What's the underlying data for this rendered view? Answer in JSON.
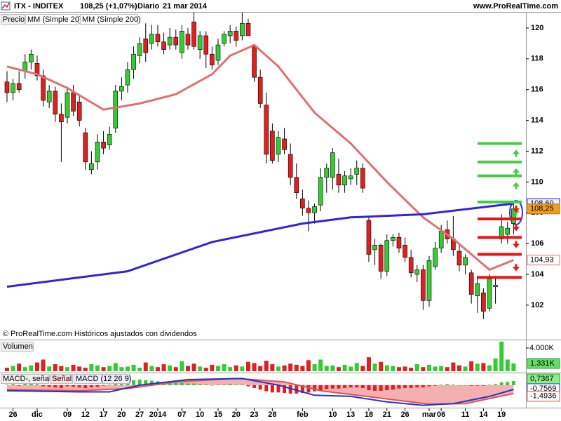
{
  "chart_data": [
    {
      "type": "candlestick",
      "title": "ITX - INDITEX",
      "quote": "108,25 (+1,07%)",
      "period": "Diario",
      "date": "21 mar 2014",
      "source": "www.ProRealTime.com",
      "footnote": "© ProRealTime.com Históricos ajustados con dividendos",
      "price_legend": "Precio",
      "last_price_label": "108,25",
      "last_price_color": "#f0a020",
      "up_color": "#33cc33",
      "down_color": "#e02020",
      "xlim": [
        -1.16,
        86.05
      ],
      "ylim": [
        100.4,
        121.0
      ],
      "yticks": [
        102,
        104,
        106,
        108,
        110,
        112,
        114,
        116,
        118,
        120
      ],
      "xticks": [
        {
          "value": 1,
          "label": "26"
        },
        {
          "value": 5,
          "label": "dic"
        },
        {
          "value": 10,
          "label": "09"
        },
        {
          "value": 13,
          "label": "12"
        },
        {
          "value": 16,
          "label": "17"
        },
        {
          "value": 19,
          "label": "20"
        },
        {
          "value": 22,
          "label": "27"
        },
        {
          "value": 25,
          "label": "2014"
        },
        {
          "value": 29,
          "label": "07"
        },
        {
          "value": 32,
          "label": "10"
        },
        {
          "value": 35,
          "label": "15"
        },
        {
          "value": 38,
          "label": "20"
        },
        {
          "value": 41,
          "label": "23"
        },
        {
          "value": 44,
          "label": "28"
        },
        {
          "value": 49,
          "label": "feb"
        },
        {
          "value": 54,
          "label": "10"
        },
        {
          "value": 57,
          "label": "13"
        },
        {
          "value": 60,
          "label": "18"
        },
        {
          "value": 63,
          "label": "21"
        },
        {
          "value": 66,
          "label": "26"
        },
        {
          "value": 70,
          "label": "mar"
        },
        {
          "value": 72,
          "label": "06"
        },
        {
          "value": 76,
          "label": "11"
        },
        {
          "value": 79,
          "label": "14"
        },
        {
          "value": 82,
          "label": "19"
        }
      ],
      "candles": {
        "open": [
          116.5,
          115.8,
          116.4,
          117.2,
          117.8,
          117.7,
          116.9,
          115.2,
          115.9,
          114.4,
          114.2,
          115.8,
          115.2,
          113.2,
          110.8,
          111.3,
          112.6,
          112.4,
          113.5,
          115.9,
          116.3,
          117.3,
          118.2,
          119.3,
          119.0,
          119.6,
          119.1,
          118.9,
          119.4,
          118.4,
          119.6,
          120.4,
          118.6,
          119.5,
          118.3,
          117.9,
          119.0,
          119.5,
          119.8,
          119.5,
          120.3,
          118.8,
          116.8,
          115.0,
          113.3,
          111.8,
          112.8,
          111.8,
          110.3,
          108.9,
          108.3,
          108.0,
          108.5,
          110.3,
          110.3,
          110.5,
          109.8,
          110.2,
          110.5,
          110.9,
          107.5,
          105.6,
          105.9,
          104.2,
          106.2,
          106.4,
          105.9,
          105.1,
          104.0,
          104.3,
          102.3,
          104.5,
          105.7,
          106.9,
          106.3,
          105.5,
          104.6,
          104.1,
          102.6,
          102.8,
          101.8,
          103.2,
          106.3,
          106.6,
          107.3
        ],
        "high": [
          117.2,
          116.7,
          117.2,
          118.3,
          118.6,
          118.2,
          117.3,
          116.3,
          116.2,
          115.1,
          116.2,
          116.3,
          115.6,
          113.5,
          112.0,
          113.1,
          113.3,
          113.6,
          116.3,
          116.8,
          117.8,
          118.8,
          119.4,
          120.3,
          120.2,
          120.2,
          119.7,
          120.0,
          119.9,
          120.2,
          120.0,
          121.0,
          119.8,
          119.8,
          118.8,
          119.3,
          119.8,
          120.2,
          120.1,
          121.0,
          120.6,
          118.9,
          117.3,
          115.8,
          113.8,
          113.3,
          113.5,
          112.5,
          111.2,
          109.5,
          108.8,
          108.6,
          110.9,
          111.2,
          112.2,
          111.5,
          110.7,
          110.9,
          111.4,
          111.2,
          107.8,
          106.3,
          106.0,
          106.6,
          106.6,
          106.7,
          106.4,
          105.6,
          104.6,
          104.6,
          105.2,
          106.1,
          107.2,
          107.5,
          107.8,
          105.9,
          105.3,
          104.3,
          103.9,
          103.1,
          104.0,
          103.9,
          107.9,
          107.4,
          108.6
        ],
        "low": [
          115.2,
          115.3,
          115.8,
          116.7,
          117.3,
          116.6,
          114.9,
          114.8,
          113.9,
          111.3,
          113.8,
          114.3,
          113.6,
          110.8,
          110.5,
          110.8,
          111.8,
          112.1,
          113.2,
          115.3,
          115.8,
          116.7,
          117.7,
          117.8,
          118.6,
          118.8,
          118.3,
          118.6,
          118.6,
          118.0,
          118.6,
          118.6,
          118.0,
          117.4,
          117.3,
          117.6,
          118.8,
          119.0,
          118.8,
          119.2,
          119.6,
          116.5,
          114.8,
          111.2,
          111.2,
          111.3,
          111.8,
          109.8,
          108.9,
          107.8,
          106.8,
          107.3,
          108.1,
          109.3,
          109.5,
          109.3,
          109.3,
          109.8,
          109.8,
          109.3,
          104.8,
          104.6,
          103.7,
          103.9,
          105.8,
          105.4,
          104.8,
          103.8,
          103.5,
          101.7,
          101.9,
          104.3,
          105.4,
          106.0,
          105.2,
          104.2,
          104.0,
          102.1,
          101.5,
          101.1,
          101.6,
          102.1,
          106.0,
          106.0,
          106.6
        ],
        "close": [
          115.8,
          116.4,
          116.0,
          117.8,
          118.3,
          116.9,
          115.3,
          115.9,
          114.4,
          113.9,
          115.8,
          114.6,
          114.0,
          111.3,
          111.2,
          112.6,
          112.2,
          113.1,
          115.9,
          116.2,
          117.3,
          118.3,
          119.0,
          118.4,
          119.6,
          119.1,
          118.6,
          119.4,
          118.9,
          119.8,
          118.9,
          118.8,
          119.5,
          118.3,
          117.6,
          118.9,
          119.6,
          119.8,
          119.2,
          120.3,
          119.5,
          116.8,
          115.1,
          111.8,
          111.4,
          112.9,
          112.1,
          110.3,
          109.3,
          108.3,
          108.0,
          108.4,
          110.3,
          110.9,
          111.9,
          109.8,
          110.4,
          110.4,
          110.9,
          109.6,
          105.3,
          105.9,
          104.2,
          106.2,
          106.4,
          105.7,
          105.1,
          104.1,
          104.3,
          102.3,
          104.9,
          105.7,
          106.8,
          106.3,
          105.6,
          104.6,
          105.1,
          102.7,
          103.4,
          101.6,
          103.7,
          103.3,
          107.1,
          107.0,
          108.25
        ]
      },
      "series": [
        {
          "name": "MM (Simple 20)",
          "color": "#e07070",
          "last_label": "104,93",
          "x": [
            0,
            5,
            10,
            16,
            22,
            28,
            34,
            37,
            41,
            45,
            51,
            57,
            63,
            69,
            74,
            80,
            84
          ],
          "values": [
            117.5,
            117.0,
            116.1,
            114.7,
            115.1,
            115.7,
            117.0,
            118.2,
            118.9,
            117.5,
            114.5,
            112.5,
            110.0,
            107.7,
            106.3,
            104.3,
            104.93
          ]
        },
        {
          "name": "MM (Simple 200)",
          "color": "#3322dd",
          "last_label": "108,60",
          "x": [
            0,
            20,
            34,
            49,
            57,
            69,
            84
          ],
          "values": [
            103.2,
            104.2,
            106.1,
            107.3,
            107.7,
            107.9,
            108.6
          ]
        }
      ],
      "levels": [
        {
          "color": "#44cc44",
          "values": [
            112.5,
            111.3,
            110.4,
            108.7
          ]
        },
        {
          "color": "#ee1111",
          "values": [
            107.6,
            106.4,
            105.3,
            103.8
          ]
        }
      ]
    },
    {
      "type": "bar",
      "title": "Volumen",
      "ylim": [
        0,
        5200
      ],
      "yticks": [
        {
          "value": 4000,
          "label": "4.000K"
        }
      ],
      "last_label": "1.331K",
      "last_label_color": "#66dd66",
      "values": [
        600,
        900,
        1300,
        700,
        1000,
        1500,
        2000,
        800,
        1200,
        900,
        700,
        1100,
        800,
        600,
        1200,
        1000,
        700,
        900,
        1400,
        700,
        800,
        1100,
        600,
        1500,
        900,
        700,
        1200,
        1000,
        700,
        1700,
        900,
        1300,
        800,
        600,
        1100,
        900,
        1200,
        700,
        1000,
        800,
        1600,
        1400,
        900,
        1800,
        1200,
        800,
        1000,
        1300,
        1100,
        900,
        1900,
        1200,
        2000,
        900,
        1000,
        700,
        1100,
        800,
        1400,
        900,
        2400,
        1300,
        1600,
        1000,
        900,
        700,
        800,
        600,
        1200,
        700,
        1100,
        800,
        900,
        700,
        1500,
        1000,
        800,
        1700,
        1300,
        1400,
        1000,
        2200,
        5100,
        2000,
        1331
      ]
    },
    {
      "type": "macd",
      "ylim": [
        -3.9,
        2.0
      ],
      "hist_name": "MACD-, señal",
      "hist_last_label": "0,7367",
      "up_color": "#33cc33",
      "down_color": "#e02020",
      "hist": [
        0.1,
        0.2,
        -0.1,
        0.3,
        0.4,
        0.2,
        -0.2,
        -0.3,
        -0.4,
        -0.5,
        -0.2,
        -0.3,
        -0.4,
        -0.5,
        -0.4,
        -0.3,
        -0.1,
        0.1,
        0.4,
        0.6,
        0.8,
        0.9,
        1.0,
        0.9,
        0.8,
        0.7,
        0.6,
        0.5,
        0.4,
        0.4,
        0.3,
        0.3,
        0.2,
        0.1,
        0.0,
        0.1,
        0.1,
        0.2,
        0.1,
        0.1,
        -0.2,
        -0.5,
        -0.8,
        -1.1,
        -1.3,
        -1.3,
        -1.4,
        -1.5,
        -1.5,
        -1.4,
        -1.3,
        -1.1,
        -0.9,
        -0.7,
        -0.6,
        -0.6,
        -0.5,
        -0.4,
        -0.4,
        -0.5,
        -0.9,
        -1.0,
        -1.0,
        -0.9,
        -0.8,
        -0.6,
        -0.5,
        -0.5,
        -0.4,
        -0.4,
        -0.2,
        -0.1,
        0.1,
        0.2,
        0.1,
        0.0,
        0.0,
        -0.1,
        -0.1,
        -0.1,
        0.1,
        0.2,
        0.5,
        0.6,
        0.7367
      ],
      "series": [
        {
          "name": "Señal",
          "color": "#e05050",
          "fill": "#f4b0b0",
          "last_label": "-1,4936",
          "x": [
            0,
            12,
            20,
            28,
            38,
            46,
            52,
            58,
            64,
            70,
            76,
            84
          ],
          "values": [
            -0.8,
            -1.0,
            -0.6,
            0.6,
            1.2,
            0.6,
            -1.0,
            -1.8,
            -2.6,
            -3.4,
            -3.3,
            -1.4936
          ]
        },
        {
          "name": "MACD (12 26 9)",
          "color": "#2233cc",
          "last_label": "-0,7569",
          "x": [
            0,
            12,
            17,
            22,
            30,
            39,
            45,
            51,
            57,
            63,
            69,
            74,
            80,
            84
          ],
          "values": [
            -1.0,
            -1.2,
            -1.2,
            0.0,
            1.0,
            1.2,
            0.0,
            -1.8,
            -2.0,
            -3.0,
            -3.6,
            -3.3,
            -2.0,
            -0.7569
          ]
        }
      ]
    }
  ]
}
